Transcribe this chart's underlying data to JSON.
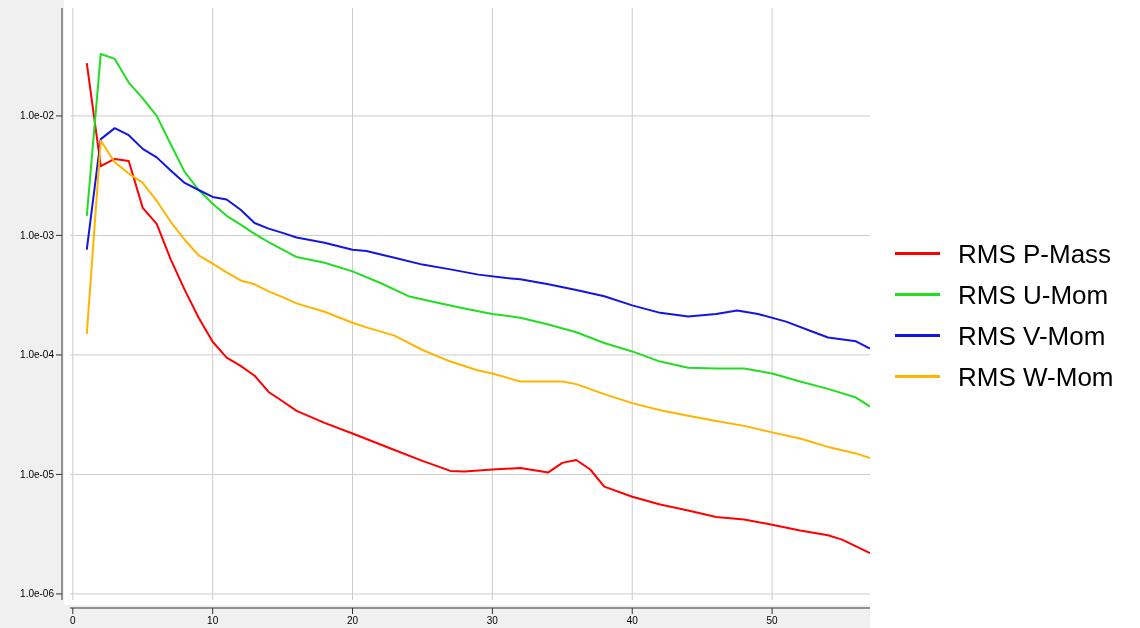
{
  "chart_data": {
    "type": "line",
    "log": "y",
    "grid": true,
    "legend": "right",
    "line_style": "solid",
    "marker": "none",
    "xlim": [
      -0.2,
      57
    ],
    "xticks": [
      0,
      10,
      20,
      30,
      40,
      50
    ],
    "ylim": [
      8.9e-07,
      0.08
    ],
    "yticks": [
      {
        "value": 1e-06,
        "label": "1.0e-06"
      },
      {
        "value": 1e-05,
        "label": "1.0e-05"
      },
      {
        "value": 0.0001,
        "label": "1.0e-04"
      },
      {
        "value": 0.001,
        "label": "1.0e-03"
      },
      {
        "value": 0.01,
        "label": "1.0e-02"
      }
    ],
    "series": [
      {
        "name": "RMS P-Mass",
        "color": "#ff0000",
        "x": [
          1,
          2,
          3,
          4,
          5,
          6,
          7,
          8,
          9,
          10,
          11,
          12,
          13,
          14,
          15,
          16,
          18,
          20,
          23,
          25,
          27,
          28,
          30,
          32,
          34,
          35,
          36,
          37,
          38,
          40,
          42,
          44,
          46,
          48,
          50,
          52,
          54,
          55,
          56,
          57
        ],
        "values": [
          0.0277,
          0.0038,
          0.00437,
          0.0042,
          0.0017,
          0.00125,
          0.00063,
          0.00035,
          0.000205,
          0.000129,
          9.5e-05,
          8.1e-05,
          6.7e-05,
          4.9e-05,
          4.1e-05,
          3.4e-05,
          2.7e-05,
          2.2e-05,
          1.6e-05,
          1.3e-05,
          1.07e-05,
          1.06e-05,
          1.1e-05,
          1.13e-05,
          1.04e-05,
          1.25e-05,
          1.32e-05,
          1.1e-05,
          7.9e-06,
          6.5e-06,
          5.6e-06,
          5e-06,
          4.4e-06,
          4.2e-06,
          3.8e-06,
          3.4e-06,
          3.1e-06,
          2.85e-06,
          2.5e-06,
          2.2e-06
        ]
      },
      {
        "name": "RMS U-Mom",
        "color": "#22dd22",
        "x": [
          1,
          2,
          3,
          4,
          5,
          6,
          7,
          8,
          9,
          10,
          11,
          12,
          13,
          14,
          15,
          16,
          18,
          20,
          22,
          24,
          26,
          28,
          30,
          32,
          34,
          36,
          38,
          40,
          42,
          44,
          46,
          48,
          50,
          52,
          54,
          56,
          57
        ],
        "values": [
          0.00146,
          0.033,
          0.03,
          0.019,
          0.014,
          0.01,
          0.0058,
          0.0034,
          0.0024,
          0.00184,
          0.00146,
          0.00123,
          0.00103,
          0.00088,
          0.00076,
          0.00066,
          0.00059,
          0.0005,
          0.0004,
          0.00031,
          0.000275,
          0.000245,
          0.00022,
          0.000205,
          0.00018,
          0.000155,
          0.000126,
          0.000107,
          8.8e-05,
          7.8e-05,
          7.7e-05,
          7.7e-05,
          7e-05,
          6e-05,
          5.2e-05,
          4.4e-05,
          3.7e-05
        ]
      },
      {
        "name": "RMS V-Mom",
        "color": "#1515e0",
        "x": [
          1,
          2,
          3,
          4,
          5,
          6,
          7,
          8,
          9,
          10,
          11,
          12,
          13,
          14,
          15,
          16,
          18,
          20,
          21,
          23,
          25,
          27,
          29,
          31,
          32,
          34,
          36,
          38,
          40,
          42,
          44,
          46,
          47.5,
          49,
          51,
          53,
          54,
          56,
          57
        ],
        "values": [
          0.00076,
          0.0064,
          0.0079,
          0.0069,
          0.0053,
          0.0045,
          0.0035,
          0.00275,
          0.0024,
          0.0021,
          0.002,
          0.00164,
          0.00127,
          0.00114,
          0.00105,
          0.00096,
          0.00087,
          0.00076,
          0.00074,
          0.00065,
          0.00057,
          0.00052,
          0.00047,
          0.00044,
          0.00043,
          0.00039,
          0.00035,
          0.00031,
          0.00026,
          0.000225,
          0.00021,
          0.00022,
          0.000235,
          0.00022,
          0.00019,
          0.000155,
          0.00014,
          0.00013,
          0.000113
        ]
      },
      {
        "name": "RMS W-Mom",
        "color": "#ffb400",
        "x": [
          1,
          2,
          3,
          4,
          5,
          6,
          7,
          8,
          9,
          10,
          11,
          12,
          13,
          14,
          15,
          16,
          18,
          20,
          21,
          23,
          25,
          27,
          29,
          30,
          32,
          35,
          36,
          38,
          40,
          42,
          44,
          46,
          48,
          50,
          52,
          54,
          56,
          57
        ],
        "values": [
          0.00015,
          0.0062,
          0.0041,
          0.0033,
          0.00275,
          0.00195,
          0.0013,
          0.00092,
          0.00068,
          0.00058,
          0.00049,
          0.00042,
          0.00039,
          0.00034,
          0.000305,
          0.00027,
          0.00023,
          0.000186,
          0.00017,
          0.000145,
          0.00011,
          8.8e-05,
          7.4e-05,
          7e-05,
          6e-05,
          6e-05,
          5.7e-05,
          4.7e-05,
          3.95e-05,
          3.45e-05,
          3.1e-05,
          2.8e-05,
          2.55e-05,
          2.25e-05,
          2e-05,
          1.7e-05,
          1.5e-05,
          1.37e-05
        ]
      }
    ]
  }
}
